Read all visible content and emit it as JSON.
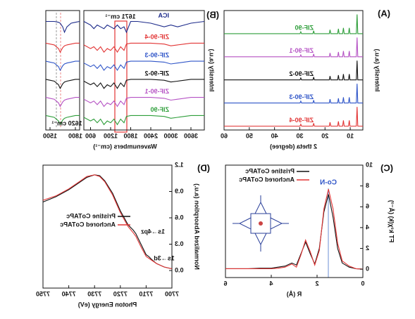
{
  "chart_data": [
    {
      "type": "line",
      "panel_label": "(A)",
      "x_label": "2 theta (degree)",
      "y_label": "Intensity (a.u.)",
      "x": [
        5,
        7,
        7.3,
        7.6,
        10.1,
        10.4,
        10.7,
        12.4,
        12.7,
        13,
        14.4,
        14.7,
        15,
        17.7,
        18,
        18.3,
        24.2,
        24.5,
        24.8,
        29.3,
        29.6,
        29.9,
        40,
        60
      ],
      "xlim": [
        5,
        60
      ],
      "xticks": [
        10,
        20,
        30,
        40,
        50,
        60
      ],
      "ylim": [
        -2,
        60
      ],
      "legend": "inline",
      "series": [
        {
          "name": "ZIF-90",
          "color": "#2e9e3a",
          "values": [
            48,
            48,
            58,
            48,
            48,
            51,
            48,
            48,
            51,
            48,
            48,
            50.5,
            48,
            48,
            50,
            48,
            48,
            49.5,
            48,
            48,
            49,
            48,
            48,
            48
          ]
        },
        {
          "name": "ZIF-90-1",
          "color": "#b552c4",
          "values": [
            36,
            36,
            46,
            36,
            36,
            39,
            36,
            36,
            39,
            36,
            36,
            38.5,
            36,
            36,
            38,
            36,
            36,
            37.5,
            36,
            36,
            37,
            36,
            36,
            36
          ]
        },
        {
          "name": "ZIF-90-2",
          "color": "#111111",
          "values": [
            24,
            24,
            34,
            24,
            24,
            27,
            24,
            24,
            27,
            24,
            24,
            26.5,
            24,
            24,
            26,
            24,
            24,
            25.5,
            24,
            24,
            25,
            24,
            24,
            24
          ]
        },
        {
          "name": "ZIF-90-3",
          "color": "#2f55c8",
          "values": [
            12,
            12,
            22,
            12,
            12,
            15,
            12,
            12,
            15,
            12,
            12,
            14.5,
            12,
            12,
            14,
            12,
            12,
            13.5,
            12,
            12,
            13,
            12,
            12,
            12
          ]
        },
        {
          "name": "ZIF-90-4",
          "color": "#e23434",
          "values": [
            0,
            0,
            10,
            0,
            0,
            3,
            0,
            0,
            3,
            0,
            0,
            2.5,
            0,
            0,
            2,
            0,
            0,
            1.5,
            0,
            0,
            1,
            0,
            0,
            0
          ]
        }
      ]
    },
    {
      "type": "line",
      "panel_label": "(B)",
      "x_label": "Wavenumbers (cm⁻¹)",
      "y_label": "Intensity (a.u.)",
      "annotations": [
        "1671 cm⁻¹",
        "1620 cm⁻¹"
      ],
      "x": [
        4000,
        3600,
        3200,
        3000,
        2800,
        2400,
        2000,
        1800,
        1671,
        1600,
        1500,
        1400,
        1300,
        1200,
        1100,
        1000,
        900,
        800,
        700,
        600,
        400
      ],
      "xlim": [
        4000,
        400
      ],
      "xticks": [
        3600,
        3000,
        2400,
        1800,
        1200,
        600
      ],
      "zoom_x": [
        1850,
        1800,
        1750,
        1700,
        1671,
        1650,
        1620,
        1600,
        1550,
        1500,
        1450
      ],
      "zoom_xlim": [
        1850,
        1450
      ],
      "zoom_xticks": [
        1800,
        1500
      ],
      "ylim": [
        0,
        66
      ],
      "legend": "inline",
      "series": [
        {
          "name": "ICA",
          "color": "#1c2a8a",
          "values": [
            60,
            59,
            57,
            58,
            57,
            59,
            60,
            60,
            54,
            57,
            56,
            58,
            56,
            57,
            58,
            56,
            57,
            58,
            56,
            58,
            60
          ],
          "zoom_values": [
            60,
            59.5,
            59,
            57,
            54,
            57,
            59,
            59.5,
            60,
            60,
            60
          ]
        },
        {
          "name": "ZIF-90-4",
          "color": "#e23434",
          "values": [
            48,
            48,
            47,
            46.5,
            47.5,
            48,
            48,
            48,
            47.5,
            44,
            46,
            43,
            46,
            44,
            45,
            43,
            46,
            44,
            46,
            45,
            47
          ],
          "zoom_values": [
            48,
            48,
            47.5,
            47,
            46.5,
            45.5,
            43,
            45,
            47,
            47.5,
            48
          ]
        },
        {
          "name": "ZIF-90-3",
          "color": "#2f55c8",
          "values": [
            38,
            38,
            37,
            36.5,
            37.5,
            38,
            38,
            38,
            37.5,
            34,
            36,
            33,
            36,
            34,
            35,
            33,
            36,
            34,
            36,
            35,
            37
          ],
          "zoom_values": [
            38,
            38,
            37.5,
            37,
            36.5,
            35.5,
            33,
            35,
            37,
            37.5,
            38
          ]
        },
        {
          "name": "ZIF-90-2",
          "color": "#111111",
          "values": [
            28,
            28,
            27,
            26.5,
            27.5,
            28,
            28,
            28,
            27.5,
            24,
            26,
            23,
            26,
            24,
            25,
            23,
            26,
            24,
            26,
            25,
            27
          ],
          "zoom_values": [
            28,
            28,
            27.5,
            27,
            26.5,
            25.5,
            23,
            25,
            27,
            27.5,
            28
          ]
        },
        {
          "name": "ZIF-90-1",
          "color": "#b552c4",
          "values": [
            18,
            18,
            17,
            16.5,
            17.5,
            18,
            18,
            18,
            17.5,
            14,
            16,
            13,
            16,
            14,
            15,
            13,
            16,
            14,
            16,
            15,
            17
          ],
          "zoom_values": [
            18,
            18,
            17.5,
            17,
            16.5,
            15.5,
            13,
            15,
            17,
            17.5,
            18
          ]
        },
        {
          "name": "ZIF-90",
          "color": "#2e9e3a",
          "values": [
            8,
            8,
            7,
            6.5,
            7.5,
            8,
            8,
            8,
            7.5,
            4,
            6,
            3,
            6,
            4,
            5,
            3,
            6,
            4,
            6,
            5,
            7
          ],
          "zoom_values": [
            8,
            8,
            7.5,
            7,
            6.5,
            5.5,
            3,
            5,
            7,
            7.5,
            8
          ]
        }
      ]
    },
    {
      "type": "line",
      "panel_label": "(C)",
      "x_label": "R (Å)",
      "y_label": "FT k²χ(k) (Å⁻³)",
      "annotations": [
        "Co-N"
      ],
      "x": [
        0,
        0.3,
        0.6,
        0.9,
        1.1,
        1.3,
        1.5,
        1.7,
        1.9,
        2.1,
        2.3,
        2.5,
        2.7,
        2.9,
        3.1,
        3.4,
        3.7,
        4,
        4.5,
        5,
        5.5,
        6
      ],
      "xlim": [
        0,
        6
      ],
      "xticks": [
        0,
        2,
        4,
        6
      ],
      "ylim": [
        -0.8,
        10
      ],
      "yticks": [
        0,
        2,
        4,
        6,
        8,
        10
      ],
      "legend": "box",
      "series": [
        {
          "name": "Pristine CoTAPc",
          "color": "#111111",
          "values": [
            0,
            0.05,
            0.2,
            0.6,
            2,
            5,
            7.2,
            5.5,
            2,
            0.5,
            1.5,
            2.6,
            1.5,
            0.4,
            0.6,
            0.3,
            0.2,
            0.1,
            0.1,
            0.05,
            0.05,
            0.05
          ]
        },
        {
          "name": "Anchored CoTAPc",
          "color": "#e23434",
          "values": [
            0,
            0.05,
            0.3,
            0.8,
            2.5,
            5.8,
            7.7,
            5.8,
            1.8,
            0.4,
            1.7,
            2.8,
            1.4,
            0.2,
            0.5,
            0.2,
            0.1,
            0.05,
            0.05,
            0.05,
            0.05,
            0.05
          ]
        }
      ]
    },
    {
      "type": "line",
      "panel_label": "(D)",
      "x_label": "Photon Energy (eV)",
      "y_label": "Normalized Absorption (a.u.)",
      "annotations": [
        "1s→4pz",
        "1s→3d"
      ],
      "x": [
        7700,
        7703,
        7706,
        7708,
        7709,
        7710,
        7712,
        7714,
        7715,
        7717,
        7720,
        7723,
        7726,
        7728,
        7730,
        7733,
        7736,
        7740,
        7745,
        7750
      ],
      "xlim": [
        7700,
        7750
      ],
      "xticks": [
        7700,
        7710,
        7720,
        7730,
        7740,
        7750
      ],
      "ylim": [
        -0.2,
        1.2
      ],
      "yticks": [
        {
          "value": 0,
          "label": "0.0"
        },
        0.3,
        0.6,
        0.9,
        1.2
      ],
      "legend": "box",
      "series": [
        {
          "name": "Pristine CoTAPc",
          "color": "#111111",
          "values": [
            0.02,
            0.04,
            0.08,
            0.13,
            0.16,
            0.18,
            0.3,
            0.42,
            0.46,
            0.52,
            0.68,
            0.88,
            1.02,
            1.08,
            1.09,
            1.06,
            1.0,
            0.92,
            0.84,
            0.78
          ]
        },
        {
          "name": "Anchored CoTAPc",
          "color": "#e23434",
          "values": [
            0.02,
            0.04,
            0.08,
            0.12,
            0.14,
            0.16,
            0.27,
            0.39,
            0.43,
            0.5,
            0.66,
            0.86,
            1.01,
            1.07,
            1.09,
            1.07,
            1.01,
            0.93,
            0.85,
            0.8
          ]
        }
      ]
    }
  ]
}
